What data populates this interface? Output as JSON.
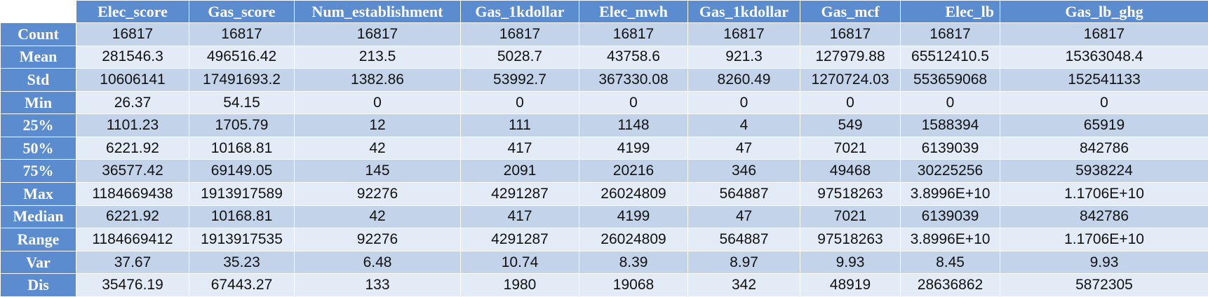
{
  "table": {
    "columns": [
      "Elec_score",
      "Gas_score",
      "Num_establishment",
      "Gas_1kdollar",
      "Elec_mwh",
      "Gas_1kdollar",
      "Gas_mcf",
      "Elec_lb",
      "Gas_lb_ghg"
    ],
    "rows": [
      {
        "label": "Count",
        "cells": [
          "16817",
          "16817",
          "16817",
          "16817",
          "16817",
          "16817",
          "16817",
          "16817",
          "16817"
        ]
      },
      {
        "label": "Mean",
        "cells": [
          "281546.3",
          "496516.42",
          "213.5",
          "5028.7",
          "43758.6",
          "921.3",
          "127979.88",
          "65512410.5",
          "15363048.4"
        ]
      },
      {
        "label": "Std",
        "cells": [
          "10606141",
          "17491693.2",
          "1382.86",
          "53992.7",
          "367330.08",
          "8260.49",
          "1270724.03",
          "553659068",
          "152541133"
        ]
      },
      {
        "label": "Min",
        "cells": [
          "26.37",
          "54.15",
          "0",
          "0",
          "0",
          "0",
          "0",
          "0",
          "0"
        ]
      },
      {
        "label": "25%",
        "cells": [
          "1101.23",
          "1705.79",
          "12",
          "111",
          "1148",
          "4",
          "549",
          "1588394",
          "65919"
        ]
      },
      {
        "label": "50%",
        "cells": [
          "6221.92",
          "10168.81",
          "42",
          "417",
          "4199",
          "47",
          "7021",
          "6139039",
          "842786"
        ]
      },
      {
        "label": "75%",
        "cells": [
          "36577.42",
          "69149.05",
          "145",
          "2091",
          "20216",
          "346",
          "49468",
          "30225256",
          "5938224"
        ]
      },
      {
        "label": "Max",
        "cells": [
          "1184669438",
          "1913917589",
          "92276",
          "4291287",
          "26024809",
          "564887",
          "97518263",
          "3.8996E+10",
          "1.1706E+10"
        ]
      },
      {
        "label": "Median",
        "cells": [
          "6221.92",
          "10168.81",
          "42",
          "417",
          "4199",
          "47",
          "7021",
          "6139039",
          "842786"
        ]
      },
      {
        "label": "Range",
        "cells": [
          "1184669412",
          "1913917535",
          "92276",
          "4291287",
          "26024809",
          "564887",
          "97518263",
          "3.8996E+10",
          "1.1706E+10"
        ]
      },
      {
        "label": "Var",
        "cells": [
          "37.67",
          "35.23",
          "6.48",
          "10.74",
          "8.39",
          "8.97",
          "9.93",
          "8.45",
          "9.93"
        ]
      },
      {
        "label": "Dis",
        "cells": [
          "35476.19",
          "67443.27",
          "133",
          "1980",
          "19068",
          "342",
          "48919",
          "28636862",
          "5872305"
        ]
      }
    ]
  }
}
